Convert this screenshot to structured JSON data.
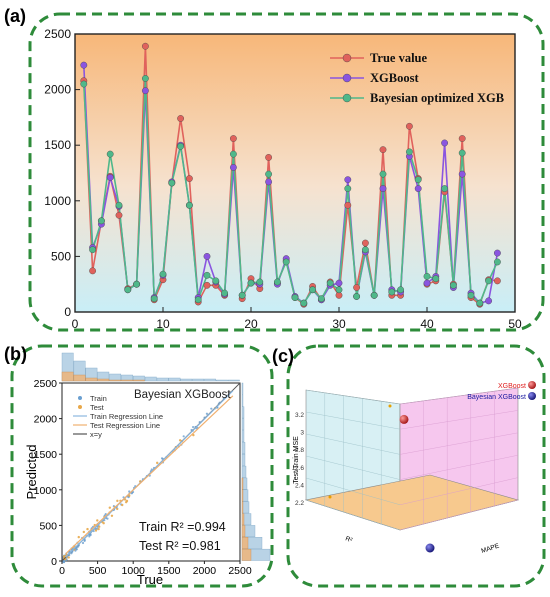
{
  "panel_labels": {
    "a": "(a)",
    "b": "(b)",
    "c": "(c)"
  },
  "colors": {
    "frame": "#2e8b3a",
    "true_value": "#e0625c",
    "xgboost": "#8a55e0",
    "bayesian": "#4fb88a",
    "train_pts": "#6a9fd0",
    "test_pts": "#e8a84a",
    "train_line": "#8bb8e0",
    "test_line": "#f0b070",
    "diag": "#555555",
    "hist_train": "#b9d3e6",
    "hist_test": "#e6b98a",
    "wall_left": "#d8f0f4",
    "wall_right": "#f6c7ee",
    "floor": "#f7c98e"
  },
  "chart_data": [
    {
      "type": "line",
      "panel": "(a)",
      "xlim": [
        0,
        50
      ],
      "ylim": [
        0,
        2500
      ],
      "xticks": [
        0,
        10,
        20,
        30,
        40,
        50
      ],
      "yticks": [
        0,
        500,
        1000,
        1500,
        2000,
        2500
      ],
      "legend_position": "top-right",
      "x": [
        1,
        2,
        3,
        4,
        5,
        6,
        7,
        8,
        9,
        10,
        11,
        12,
        13,
        14,
        15,
        16,
        17,
        18,
        19,
        20,
        21,
        22,
        23,
        24,
        25,
        26,
        27,
        28,
        29,
        30,
        31,
        32,
        33,
        34,
        35,
        36,
        37,
        38,
        39,
        40,
        41,
        42,
        43,
        44,
        45,
        46,
        47,
        48
      ],
      "series": [
        {
          "name": "True value",
          "values": [
            2080,
            370,
            820,
            1220,
            870,
            210,
            250,
            2390,
            110,
            290,
            1160,
            1740,
            1200,
            90,
            240,
            240,
            150,
            1560,
            120,
            300,
            210,
            1390,
            260,
            460,
            130,
            70,
            230,
            110,
            270,
            150,
            960,
            220,
            620,
            150,
            1460,
            150,
            150,
            1670,
            1200,
            250,
            280,
            1080,
            250,
            1560,
            130,
            70,
            290,
            280
          ]
        },
        {
          "name": "XGBoost",
          "values": [
            2220,
            580,
            790,
            1210,
            950,
            200,
            250,
            1990,
            130,
            330,
            1170,
            1500,
            960,
            130,
            500,
            270,
            160,
            1300,
            150,
            260,
            250,
            1170,
            250,
            480,
            140,
            80,
            200,
            110,
            240,
            260,
            1190,
            140,
            540,
            150,
            1110,
            200,
            180,
            1400,
            1110,
            260,
            320,
            1520,
            220,
            1240,
            170,
            80,
            100,
            530
          ]
        },
        {
          "name": "Bayesian optimized XGB",
          "values": [
            2050,
            560,
            820,
            1420,
            960,
            200,
            250,
            2100,
            120,
            340,
            1160,
            1490,
            960,
            110,
            330,
            280,
            170,
            1420,
            150,
            260,
            270,
            1240,
            270,
            450,
            130,
            80,
            200,
            120,
            260,
            200,
            1110,
            140,
            560,
            150,
            1240,
            180,
            200,
            1440,
            1190,
            320,
            300,
            1110,
            240,
            1430,
            150,
            80,
            280,
            450
          ]
        }
      ]
    },
    {
      "type": "scatter",
      "panel": "(b)",
      "title": "Bayesian XGBoost",
      "xlabel": "True",
      "ylabel": "Predicted",
      "xlim": [
        0,
        2500
      ],
      "ylim": [
        0,
        2500
      ],
      "xticks": [
        0,
        500,
        1000,
        1500,
        2000,
        2500
      ],
      "yticks": [
        0,
        500,
        1000,
        1500,
        2000,
        2500
      ],
      "legend": [
        "Train",
        "Test",
        "Train Regression Line",
        "Test Regression Line",
        "x=y"
      ],
      "annotations": {
        "train_r2": "Train R² =0.994",
        "test_r2": "Test R² =0.981"
      },
      "train_line": {
        "x": [
          50,
          2400
        ],
        "y": [
          55,
          2390
        ]
      },
      "test_line": {
        "x": [
          50,
          2400
        ],
        "y": [
          100,
          2320
        ]
      },
      "diag_line": {
        "x": [
          0,
          2500
        ],
        "y": [
          0,
          2500
        ]
      }
    },
    {
      "type": "scatter",
      "panel": "(c)",
      "labels": {
        "zlabel": "Test/Train MSE",
        "xlabel": "MAPE",
        "ylabel": "R²"
      },
      "zticks": [
        "3.2",
        "3",
        "2.8",
        "2.6",
        "2.4",
        "2.2"
      ],
      "legend": [
        {
          "name": "XGBoost",
          "color": "#e02020"
        },
        {
          "name": "Bayesian XGBoost",
          "color": "#1a1aa0"
        }
      ],
      "points": [
        {
          "name": "XGBoost",
          "mse": 3.15
        },
        {
          "name": "Bayesian XGBoost",
          "mse": 2.22
        }
      ]
    }
  ]
}
